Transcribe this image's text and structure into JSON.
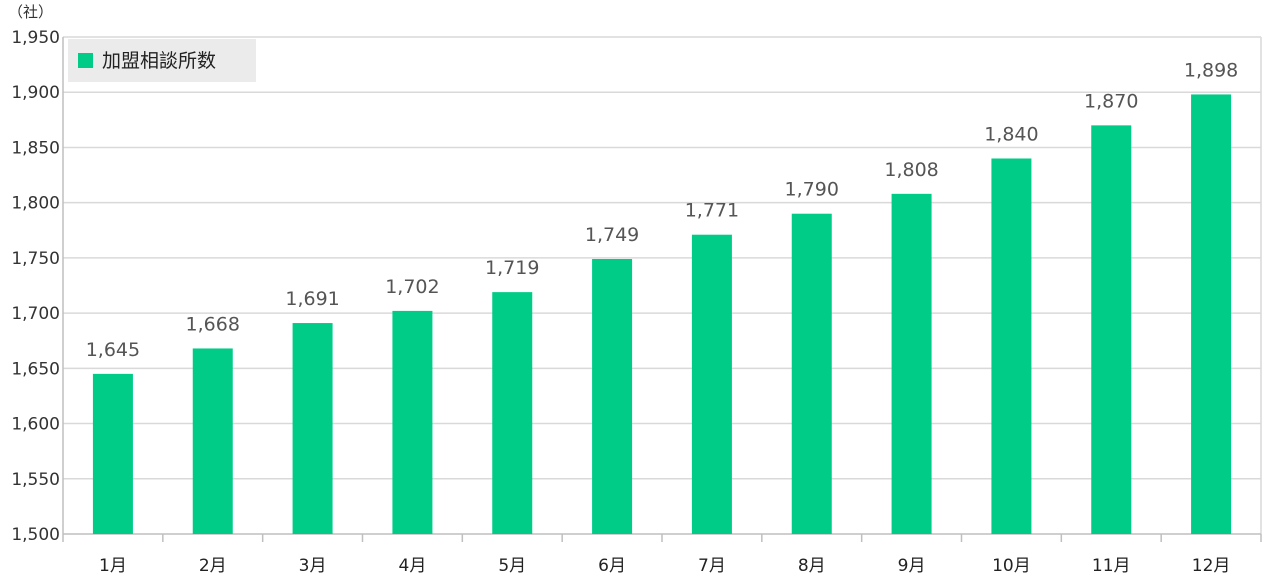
{
  "chart_data": {
    "type": "bar",
    "unit_label": "（社）",
    "categories": [
      "1月",
      "2月",
      "3月",
      "4月",
      "5月",
      "6月",
      "7月",
      "8月",
      "9月",
      "10月",
      "11月",
      "12月"
    ],
    "series": [
      {
        "name": "加盟相談所数",
        "values": [
          1645,
          1668,
          1691,
          1702,
          1719,
          1749,
          1771,
          1790,
          1808,
          1840,
          1870,
          1898
        ],
        "value_labels": [
          "1,645",
          "1,668",
          "1,691",
          "1,702",
          "1,719",
          "1,749",
          "1,771",
          "1,790",
          "1,808",
          "1,840",
          "1,870",
          "1,898"
        ]
      }
    ],
    "ylim": [
      1500,
      1950
    ],
    "yticks": [
      1500,
      1550,
      1600,
      1650,
      1700,
      1750,
      1800,
      1850,
      1900,
      1950
    ],
    "ytick_labels": [
      "1,500",
      "1,550",
      "1,600",
      "1,650",
      "1,700",
      "1,750",
      "1,800",
      "1,850",
      "1,900",
      "1,950"
    ],
    "grid": true,
    "legend_position": "top-left",
    "colors": {
      "bar": "#00CC88",
      "grid": "#d9d9d9",
      "axis": "#bfbfbf",
      "legend_bg": "#ebebeb"
    }
  }
}
